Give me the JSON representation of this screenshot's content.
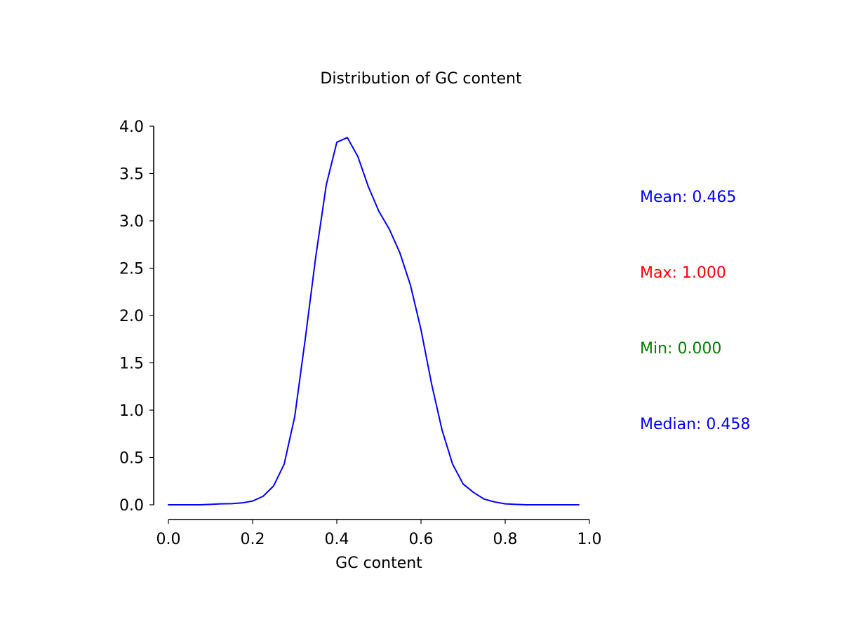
{
  "chart_data": {
    "type": "line",
    "title": "Distribution of GC content",
    "xlabel": "GC content",
    "ylabel": "",
    "xlim": [
      0.0,
      1.0
    ],
    "ylim": [
      0.0,
      4.0
    ],
    "x_ticks": [
      "0.0",
      "0.2",
      "0.4",
      "0.6",
      "0.8",
      "1.0"
    ],
    "y_ticks": [
      "0.0",
      "0.5",
      "1.0",
      "1.5",
      "2.0",
      "2.5",
      "3.0",
      "3.5",
      "4.0"
    ],
    "grid": false,
    "series": [
      {
        "color": "#0000ff",
        "x": [
          0.0,
          0.025,
          0.05,
          0.075,
          0.1,
          0.125,
          0.15,
          0.175,
          0.2,
          0.225,
          0.25,
          0.275,
          0.3,
          0.325,
          0.35,
          0.375,
          0.4,
          0.425,
          0.45,
          0.475,
          0.5,
          0.525,
          0.55,
          0.575,
          0.6,
          0.625,
          0.65,
          0.675,
          0.7,
          0.725,
          0.75,
          0.775,
          0.8,
          0.825,
          0.85,
          0.875,
          0.9,
          0.925,
          0.95,
          0.975
        ],
        "y": [
          0.0,
          0.0,
          0.0,
          0.0,
          0.005,
          0.01,
          0.012,
          0.02,
          0.04,
          0.09,
          0.2,
          0.43,
          0.93,
          1.75,
          2.62,
          3.38,
          3.83,
          3.88,
          3.68,
          3.36,
          3.1,
          2.91,
          2.66,
          2.32,
          1.85,
          1.28,
          0.79,
          0.43,
          0.22,
          0.13,
          0.06,
          0.03,
          0.01,
          0.005,
          0.0,
          0.0,
          0.0,
          0.0,
          0.0,
          0.0
        ]
      }
    ]
  },
  "stats": [
    {
      "text": "Mean: 0.465",
      "color": "#0000ff"
    },
    {
      "text": "Max: 1.000",
      "color": "#ff0000"
    },
    {
      "text": "Min: 0.000",
      "color": "#008000"
    },
    {
      "text": "Median: 0.458",
      "color": "#0000ff"
    }
  ]
}
